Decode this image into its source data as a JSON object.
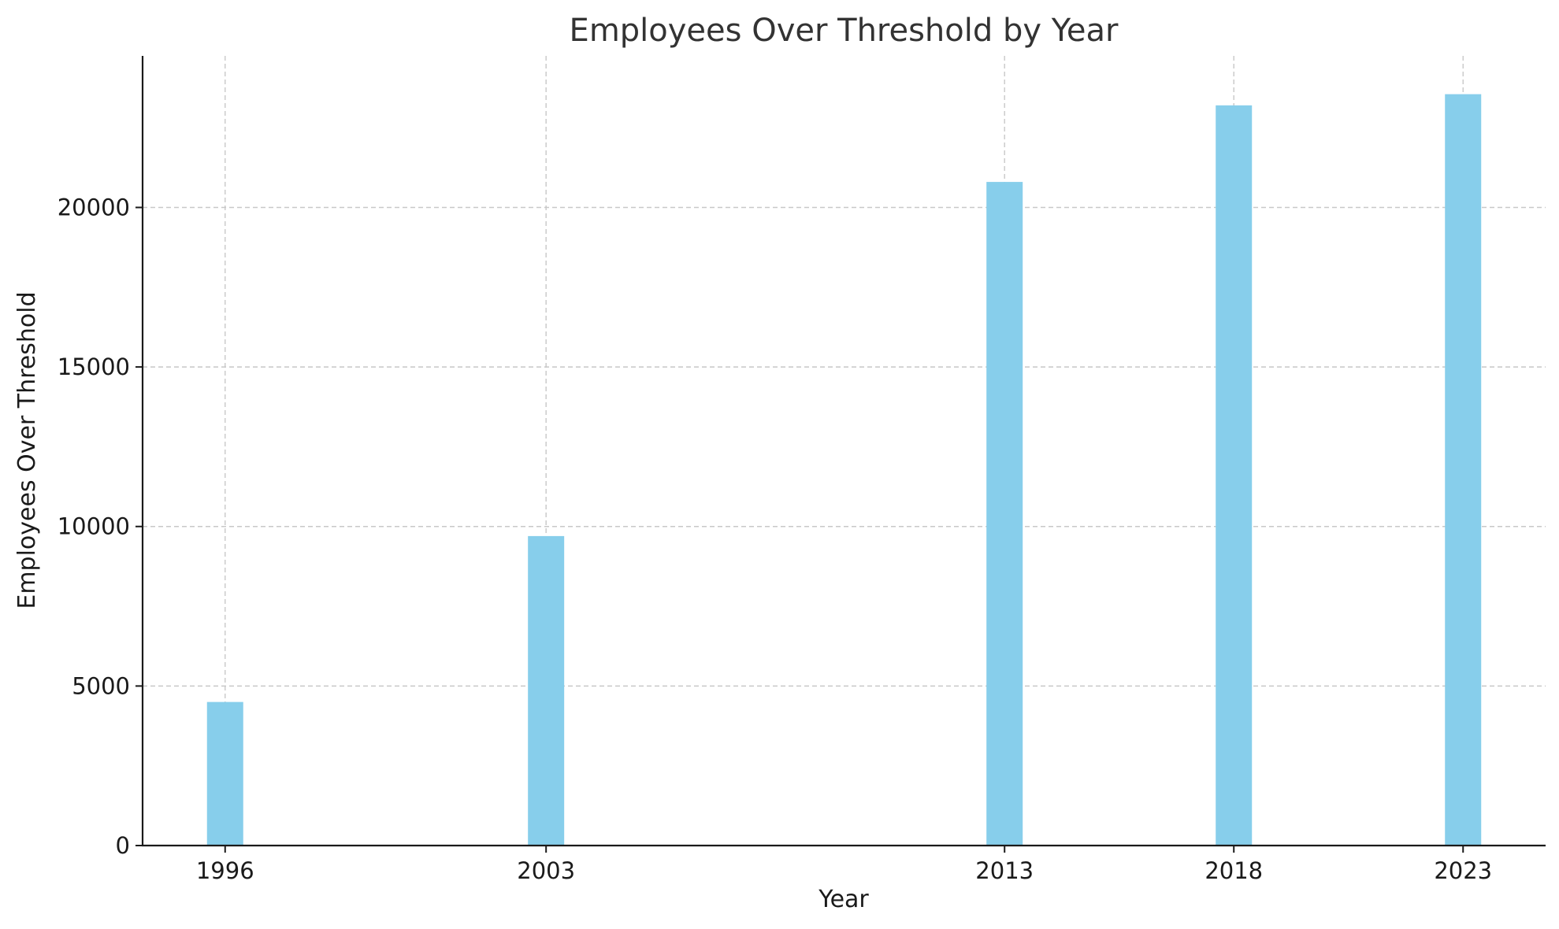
{
  "chart_data": {
    "type": "bar",
    "title": "Employees Over Threshold by Year",
    "xlabel": "Year",
    "ylabel": "Employees Over Threshold",
    "x": [
      1996,
      2003,
      2013,
      2018,
      2023
    ],
    "x_tick_labels": [
      "1996",
      "2003",
      "2013",
      "2018",
      "2023"
    ],
    "values": [
      4500,
      9700,
      20800,
      23200,
      23550
    ],
    "ylim": [
      0,
      24750
    ],
    "xlim": [
      1994.2,
      2024.8
    ],
    "y_ticks": [
      0,
      5000,
      10000,
      15000,
      20000
    ],
    "y_tick_labels": [
      "0",
      "5000",
      "10000",
      "15000",
      "20000"
    ],
    "grid": true,
    "bar_color": "#87ceeb"
  }
}
